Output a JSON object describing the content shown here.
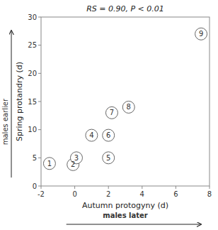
{
  "chart_data": {
    "type": "scatter",
    "title": "RS = 0.90, P < 0.01",
    "x_label": "Autumn protogyny (d)",
    "y_label": "Spring protandry (d)",
    "annotations": [
      "males earlier",
      "males later"
    ],
    "x": [
      -1.5,
      -0.1,
      0.1,
      1.0,
      2.0,
      2.0,
      2.2,
      3.2,
      7.5
    ],
    "values": [
      4.0,
      3.8,
      5.0,
      9.0,
      5.0,
      9.0,
      13.0,
      14.0,
      27.0
    ],
    "labels": [
      "1",
      "2",
      "3",
      "4",
      "5",
      "6",
      "7",
      "8",
      "9"
    ],
    "color": "#666666",
    "xlim": [
      -2,
      8
    ],
    "ylim": [
      0,
      30
    ],
    "xticks": [
      -2,
      0,
      2,
      4,
      6,
      8
    ],
    "yticks": [
      0,
      5,
      10,
      15,
      20,
      25,
      30
    ],
    "grid": false
  }
}
